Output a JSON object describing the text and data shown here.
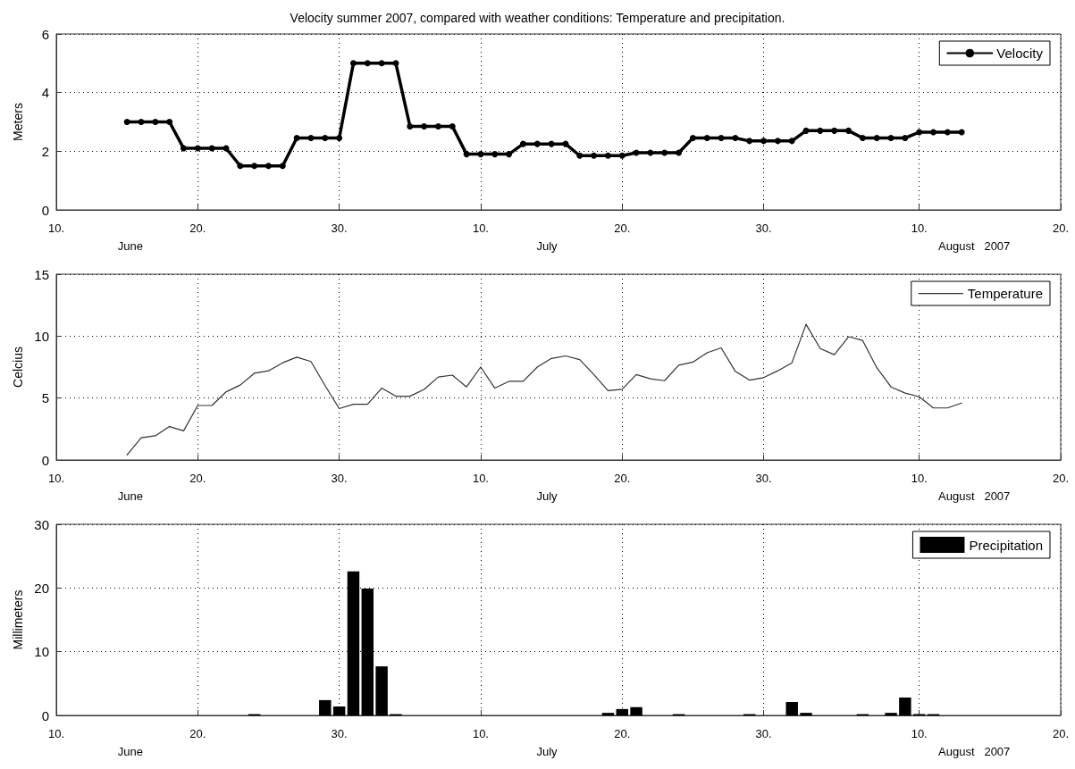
{
  "chart_data": [
    {
      "type": "line",
      "title": "Velocity summer 2007, compared with weather conditions: Temperature and precipitation.",
      "ylabel": "Meters",
      "x": [
        "2007-06-15",
        "2007-06-16",
        "2007-06-17",
        "2007-06-18",
        "2007-06-19",
        "2007-06-20",
        "2007-06-21",
        "2007-06-22",
        "2007-06-23",
        "2007-06-24",
        "2007-06-25",
        "2007-06-26",
        "2007-06-27",
        "2007-06-28",
        "2007-06-29",
        "2007-06-30",
        "2007-07-01",
        "2007-07-02",
        "2007-07-03",
        "2007-07-04",
        "2007-07-05",
        "2007-07-06",
        "2007-07-07",
        "2007-07-08",
        "2007-07-09",
        "2007-07-10",
        "2007-07-11",
        "2007-07-12",
        "2007-07-13",
        "2007-07-14",
        "2007-07-15",
        "2007-07-16",
        "2007-07-17",
        "2007-07-18",
        "2007-07-19",
        "2007-07-20",
        "2007-07-21",
        "2007-07-22",
        "2007-07-23",
        "2007-07-24",
        "2007-07-25",
        "2007-07-26",
        "2007-07-27",
        "2007-07-28",
        "2007-07-29",
        "2007-07-30",
        "2007-07-31",
        "2007-08-01",
        "2007-08-02",
        "2007-08-03",
        "2007-08-04",
        "2007-08-05",
        "2007-08-06",
        "2007-08-07",
        "2007-08-08",
        "2007-08-09",
        "2007-08-10",
        "2007-08-11",
        "2007-08-12",
        "2007-08-13"
      ],
      "series": [
        {
          "name": "Velocity",
          "color": "#000000",
          "values": [
            3.0,
            3.0,
            3.0,
            3.0,
            2.1,
            2.1,
            2.1,
            2.1,
            1.5,
            1.5,
            1.5,
            1.5,
            2.45,
            2.45,
            2.45,
            2.45,
            5.0,
            5.0,
            5.0,
            5.0,
            2.85,
            2.85,
            2.85,
            2.85,
            1.9,
            1.9,
            1.9,
            1.9,
            2.25,
            2.25,
            2.25,
            2.25,
            1.85,
            1.85,
            1.85,
            1.85,
            1.95,
            1.95,
            1.95,
            1.95,
            2.45,
            2.45,
            2.45,
            2.45,
            2.35,
            2.35,
            2.35,
            2.35,
            2.7,
            2.7,
            2.7,
            2.7,
            2.45,
            2.45,
            2.45,
            2.45,
            2.65,
            2.65,
            2.65,
            2.65
          ]
        }
      ],
      "marker": "circle",
      "line_style": "solid",
      "grid": true,
      "legend": "top right",
      "xlim": [
        "2007-06-10",
        "2007-08-20"
      ],
      "xticks": [
        {
          "value": "2007-06-10",
          "label": "10."
        },
        {
          "value": "2007-06-20",
          "label": "20."
        },
        {
          "value": "2007-06-30",
          "label": "30."
        },
        {
          "value": "2007-07-10",
          "label": "10."
        },
        {
          "value": "2007-07-20",
          "label": "20."
        },
        {
          "value": "2007-07-30",
          "label": "30."
        },
        {
          "value": "2007-08-10",
          "label": "10."
        },
        {
          "value": "2007-08-20",
          "label": "20."
        }
      ],
      "ylim": [
        0,
        6
      ],
      "yticks": [
        0,
        2,
        4,
        6
      ],
      "annotations": [
        "June",
        "July",
        "August   2007"
      ]
    },
    {
      "type": "line",
      "ylabel": "Celcius",
      "x": [
        "2007-06-15",
        "2007-06-16",
        "2007-06-17",
        "2007-06-18",
        "2007-06-19",
        "2007-06-20",
        "2007-06-21",
        "2007-06-22",
        "2007-06-23",
        "2007-06-24",
        "2007-06-25",
        "2007-06-26",
        "2007-06-27",
        "2007-06-28",
        "2007-06-29",
        "2007-06-30",
        "2007-07-01",
        "2007-07-02",
        "2007-07-03",
        "2007-07-04",
        "2007-07-05",
        "2007-07-06",
        "2007-07-07",
        "2007-07-08",
        "2007-07-09",
        "2007-07-10",
        "2007-07-11",
        "2007-07-12",
        "2007-07-13",
        "2007-07-14",
        "2007-07-15",
        "2007-07-16",
        "2007-07-17",
        "2007-07-18",
        "2007-07-19",
        "2007-07-20",
        "2007-07-21",
        "2007-07-22",
        "2007-07-23",
        "2007-07-24",
        "2007-07-25",
        "2007-07-26",
        "2007-07-27",
        "2007-07-28",
        "2007-07-29",
        "2007-07-30",
        "2007-07-31",
        "2007-08-01",
        "2007-08-02",
        "2007-08-03",
        "2007-08-04",
        "2007-08-05",
        "2007-08-06",
        "2007-08-07",
        "2007-08-08",
        "2007-08-09",
        "2007-08-10",
        "2007-08-11",
        "2007-08-12",
        "2007-08-13"
      ],
      "series": [
        {
          "name": "Temperature",
          "color": "#333333",
          "values": [
            0.4,
            1.8,
            1.95,
            2.7,
            2.35,
            4.4,
            4.4,
            5.5,
            6.05,
            7.0,
            7.2,
            7.85,
            8.3,
            7.95,
            6.0,
            4.15,
            4.5,
            4.5,
            5.8,
            5.15,
            5.15,
            5.7,
            6.7,
            6.85,
            5.9,
            7.5,
            5.8,
            6.35,
            6.35,
            7.5,
            8.2,
            8.4,
            8.1,
            6.9,
            5.6,
            5.7,
            6.9,
            6.55,
            6.4,
            7.65,
            7.9,
            8.65,
            9.05,
            7.15,
            6.45,
            6.65,
            7.2,
            7.85,
            10.95,
            9.0,
            8.5,
            9.95,
            9.65,
            7.45,
            5.9,
            5.4,
            5.1,
            4.2,
            4.2,
            4.6
          ]
        }
      ],
      "line_style": "solid",
      "grid": true,
      "legend": "top right",
      "xlim": [
        "2007-06-10",
        "2007-08-20"
      ],
      "xticks": [
        {
          "value": "2007-06-10",
          "label": "10."
        },
        {
          "value": "2007-06-20",
          "label": "20."
        },
        {
          "value": "2007-06-30",
          "label": "30."
        },
        {
          "value": "2007-07-10",
          "label": "10."
        },
        {
          "value": "2007-07-20",
          "label": "20."
        },
        {
          "value": "2007-07-30",
          "label": "30."
        },
        {
          "value": "2007-08-10",
          "label": "10."
        },
        {
          "value": "2007-08-20",
          "label": "20."
        }
      ],
      "ylim": [
        0,
        15
      ],
      "yticks": [
        0,
        5,
        10,
        15
      ],
      "annotations": [
        "June",
        "July",
        "August   2007"
      ]
    },
    {
      "type": "bar",
      "ylabel": "Millimeters",
      "x": [
        "2007-06-24",
        "2007-06-29",
        "2007-06-30",
        "2007-07-01",
        "2007-07-02",
        "2007-07-03",
        "2007-07-04",
        "2007-07-19",
        "2007-07-20",
        "2007-07-21",
        "2007-07-24",
        "2007-07-29",
        "2007-08-01",
        "2007-08-02",
        "2007-08-06",
        "2007-08-08",
        "2007-08-09",
        "2007-08-10",
        "2007-08-11"
      ],
      "series": [
        {
          "name": "Precipitation",
          "color": "#000000",
          "values": [
            0.2,
            2.4,
            1.4,
            22.6,
            19.9,
            7.7,
            0.2,
            0.4,
            1.0,
            1.3,
            0.2,
            0.2,
            2.1,
            0.4,
            0.2,
            0.4,
            2.8,
            0.2,
            0.2
          ]
        }
      ],
      "grid": true,
      "legend": "top right",
      "xlim": [
        "2007-06-10",
        "2007-08-20"
      ],
      "xticks": [
        {
          "value": "2007-06-10",
          "label": "10."
        },
        {
          "value": "2007-06-20",
          "label": "20."
        },
        {
          "value": "2007-06-30",
          "label": "30."
        },
        {
          "value": "2007-07-10",
          "label": "10."
        },
        {
          "value": "2007-07-20",
          "label": "20."
        },
        {
          "value": "2007-07-30",
          "label": "30."
        },
        {
          "value": "2007-08-10",
          "label": "10."
        },
        {
          "value": "2007-08-20",
          "label": "20."
        }
      ],
      "ylim": [
        0,
        30
      ],
      "yticks": [
        0,
        10,
        20,
        30
      ],
      "annotations": [
        "June",
        "July",
        "August   2007"
      ]
    }
  ]
}
